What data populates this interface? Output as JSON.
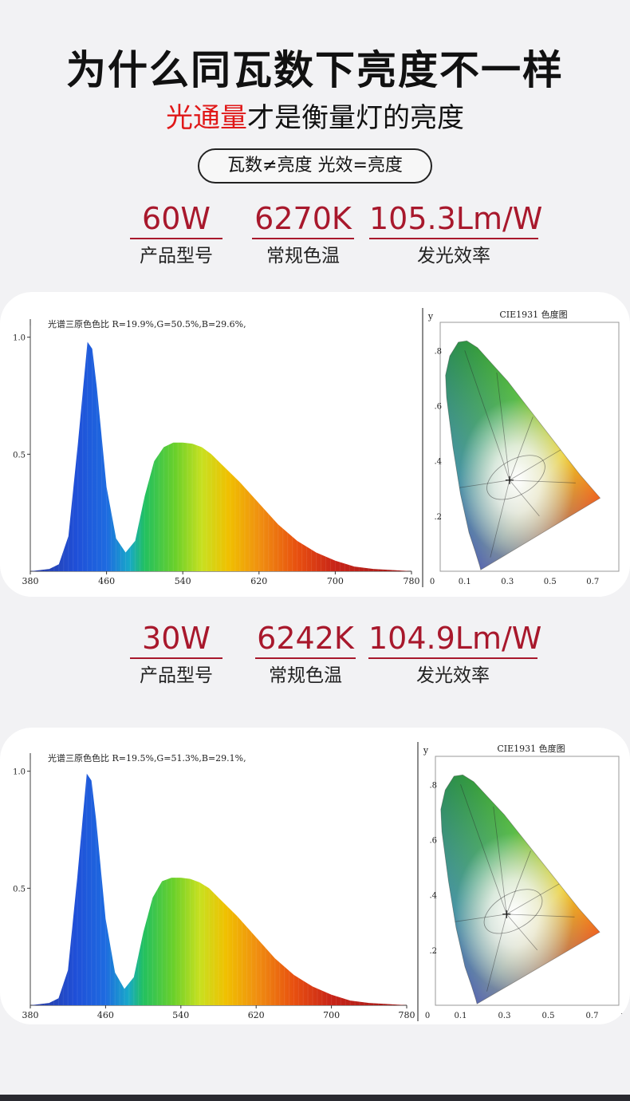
{
  "header": {
    "title": "为什么同瓦数下亮度不一样",
    "subtitle_highlight": "光通量",
    "subtitle_rest": "才是衡量灯的亮度",
    "pill": "瓦数≠亮度  光效=亮度"
  },
  "sections": [
    {
      "stats": [
        {
          "value": "60W",
          "label": "产品型号"
        },
        {
          "value": "6270K",
          "label": "常规色温"
        },
        {
          "value": "105.3Lm/W",
          "label": "发光效率"
        }
      ]
    },
    {
      "stats": [
        {
          "value": "30W",
          "label": "产品型号"
        },
        {
          "value": "6242K",
          "label": "常规色温"
        },
        {
          "value": "104.9Lm/W",
          "label": "发光效率"
        }
      ]
    }
  ],
  "chart_data": [
    {
      "type": "area",
      "annotation": "光谱三原色色比  R=19.9%,G=50.5%,B=29.6%,",
      "x_ticks": [
        "380",
        "460",
        "540",
        "620",
        "700",
        "780"
      ],
      "y_ticks": [
        "1.0",
        "0.5"
      ],
      "xlim": [
        380,
        780
      ],
      "ylim": [
        0,
        1.05
      ],
      "x": [
        380,
        400,
        410,
        420,
        430,
        440,
        445,
        450,
        460,
        470,
        480,
        490,
        500,
        510,
        520,
        530,
        540,
        550,
        560,
        570,
        580,
        600,
        620,
        640,
        660,
        680,
        700,
        720,
        740,
        760,
        780
      ],
      "values": [
        0.0,
        0.01,
        0.03,
        0.15,
        0.55,
        0.98,
        0.95,
        0.78,
        0.36,
        0.14,
        0.08,
        0.13,
        0.32,
        0.47,
        0.53,
        0.55,
        0.55,
        0.545,
        0.53,
        0.5,
        0.46,
        0.38,
        0.29,
        0.2,
        0.13,
        0.08,
        0.045,
        0.02,
        0.01,
        0.005,
        0.0
      ]
    },
    {
      "type": "scatter",
      "title": "CIE1931 色度图",
      "ylabel": "y",
      "x_ticks": [
        "0",
        "0.1",
        "0.3",
        "0.5",
        "0.7"
      ],
      "y_ticks": [
        ".8",
        ".6",
        ".4",
        ".2"
      ],
      "xlim": [
        0,
        0.8
      ],
      "ylim": [
        0,
        0.85
      ],
      "x": [
        0.31
      ],
      "values": [
        0.33
      ]
    },
    {
      "type": "area",
      "annotation": "光谱三原色色比  R=19.5%,G=51.3%,B=29.1%,",
      "x_ticks": [
        "380",
        "460",
        "540",
        "620",
        "700",
        "780"
      ],
      "y_ticks": [
        "1.0",
        "0.5"
      ],
      "xlim": [
        380,
        780
      ],
      "ylim": [
        0,
        1.05
      ],
      "x": [
        380,
        400,
        410,
        420,
        430,
        440,
        445,
        450,
        460,
        470,
        480,
        490,
        500,
        510,
        520,
        530,
        540,
        550,
        560,
        570,
        580,
        600,
        620,
        640,
        660,
        680,
        700,
        720,
        740,
        760,
        780
      ],
      "values": [
        0.0,
        0.01,
        0.03,
        0.15,
        0.55,
        0.99,
        0.96,
        0.79,
        0.37,
        0.14,
        0.07,
        0.12,
        0.31,
        0.46,
        0.53,
        0.545,
        0.545,
        0.54,
        0.525,
        0.5,
        0.46,
        0.38,
        0.29,
        0.2,
        0.13,
        0.08,
        0.045,
        0.02,
        0.01,
        0.005,
        0.0
      ]
    },
    {
      "type": "scatter",
      "title": "CIE1931 色度图",
      "ylabel": "y",
      "xlabel": "x",
      "x_ticks": [
        "0",
        "0.1",
        "0.3",
        "0.5",
        "0.7"
      ],
      "y_ticks": [
        ".8",
        ".6",
        ".4",
        ".2"
      ],
      "xlim": [
        0,
        0.8
      ],
      "ylim": [
        0,
        0.85
      ],
      "x": [
        0.31
      ],
      "values": [
        0.33
      ]
    }
  ]
}
